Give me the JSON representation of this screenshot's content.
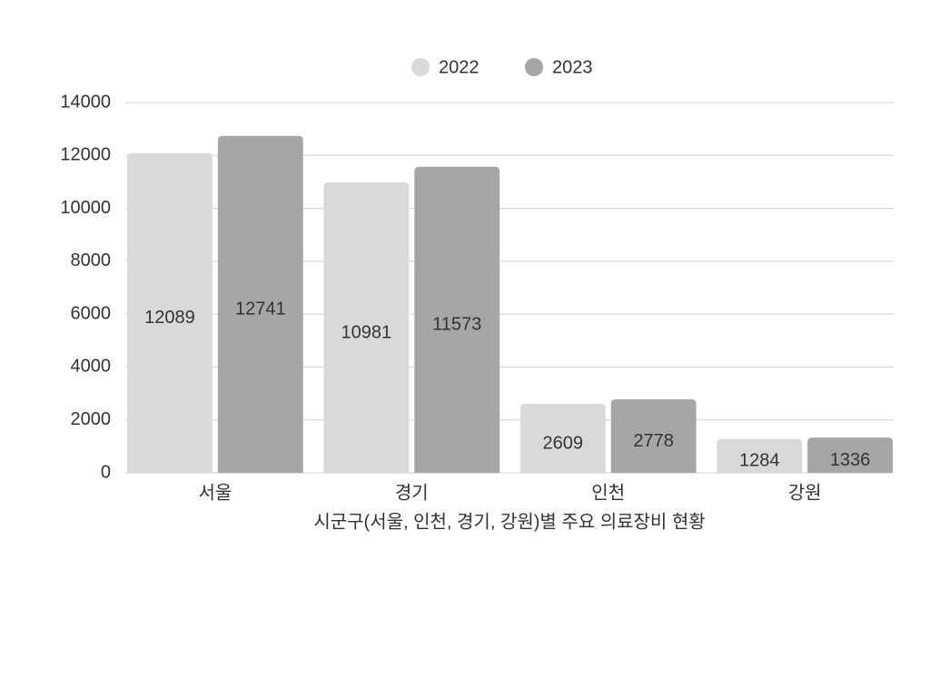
{
  "chart_data": {
    "type": "bar",
    "x_label": "시군구(서울, 인천, 경기, 강원)별 주요 의료장비 현황",
    "categories": [
      "서울",
      "경기",
      "인천",
      "강원"
    ],
    "series": [
      {
        "name": "2022",
        "color": "#d9d9d9",
        "values": [
          12089,
          10981,
          2609,
          1284
        ]
      },
      {
        "name": "2023",
        "color": "#a6a6a6",
        "values": [
          12741,
          11573,
          2778,
          1336
        ]
      }
    ],
    "ylim": [
      0,
      14000
    ],
    "yticks": [
      0,
      2000,
      4000,
      6000,
      8000,
      10000,
      12000,
      14000
    ],
    "grid": true,
    "legend": "top"
  }
}
